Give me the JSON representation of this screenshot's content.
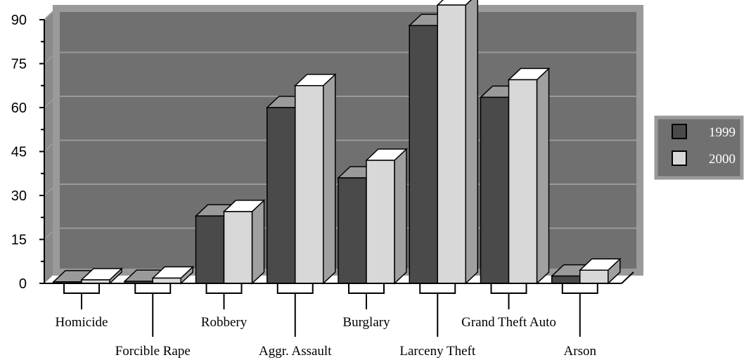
{
  "chart_data": {
    "type": "bar",
    "title": "",
    "xlabel": "",
    "ylabel": "",
    "ylim": [
      0,
      90
    ],
    "yticks": [
      0,
      15,
      30,
      45,
      60,
      75,
      90
    ],
    "grid": true,
    "legend_position": "right",
    "categories": [
      "Homicide",
      "Forcible Rape",
      "Robbery",
      "Aggr. Assault",
      "Burglary",
      "Larceny Theft",
      "Grand Theft Auto",
      "Arson"
    ],
    "series": [
      {
        "name": "1999",
        "color": "#4a4a4a",
        "values": [
          0.5,
          0.7,
          23,
          60,
          36,
          88,
          63.5,
          2.5
        ]
      },
      {
        "name": "2000",
        "color": "#d8d8d8",
        "values": [
          1.2,
          1.8,
          24.5,
          67.5,
          42,
          95,
          69.5,
          4.5
        ]
      }
    ]
  }
}
